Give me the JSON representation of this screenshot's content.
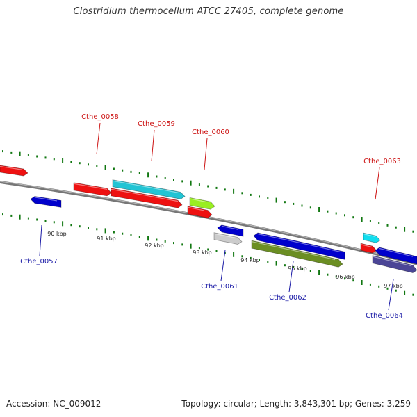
{
  "header": {
    "title": "Clostridium thermocellum ATCC 27405, complete genome"
  },
  "footer": {
    "accession": "Accession: NC_009012",
    "summary": "Topology: circular; Length: 3,843,301 bp; Genes: 3,259"
  },
  "map": {
    "ticks": [
      {
        "label": "90 kbp"
      },
      {
        "label": "91 kbp"
      },
      {
        "label": "92 kbp"
      },
      {
        "label": "93 kbp"
      },
      {
        "label": "94 kbp"
      },
      {
        "label": "95 kbp"
      },
      {
        "label": "96 kbp"
      },
      {
        "label": "97 kbp"
      }
    ],
    "genes": [
      {
        "label": "Cthe_0057",
        "color": "#0000cc",
        "strand": "-",
        "label_color": "#1a1aa6"
      },
      {
        "label": "Cthe_0058",
        "color": "#ee1111",
        "strand": "+",
        "label_color": "#cc1111"
      },
      {
        "label": "Cthe_0059",
        "color": "#22c4d4",
        "strand": "+",
        "label_color": "#cc1111"
      },
      {
        "label": "Cthe_0060",
        "color": "#99ee22",
        "strand": "+",
        "label_color": "#cc1111"
      },
      {
        "label": "Cthe_0061",
        "color": "#0000cc",
        "strand": "-",
        "label_color": "#1a1aa6"
      },
      {
        "label": "Cthe_0062",
        "color": "#0000cc",
        "strand": "-",
        "label_color": "#1a1aa6"
      },
      {
        "label": "Cthe_0063",
        "color": "#11ddee",
        "strand": "+",
        "label_color": "#cc1111"
      },
      {
        "label": "Cthe_0064",
        "color": "#0000cc",
        "strand": "-",
        "label_color": "#1a1aa6"
      }
    ]
  }
}
